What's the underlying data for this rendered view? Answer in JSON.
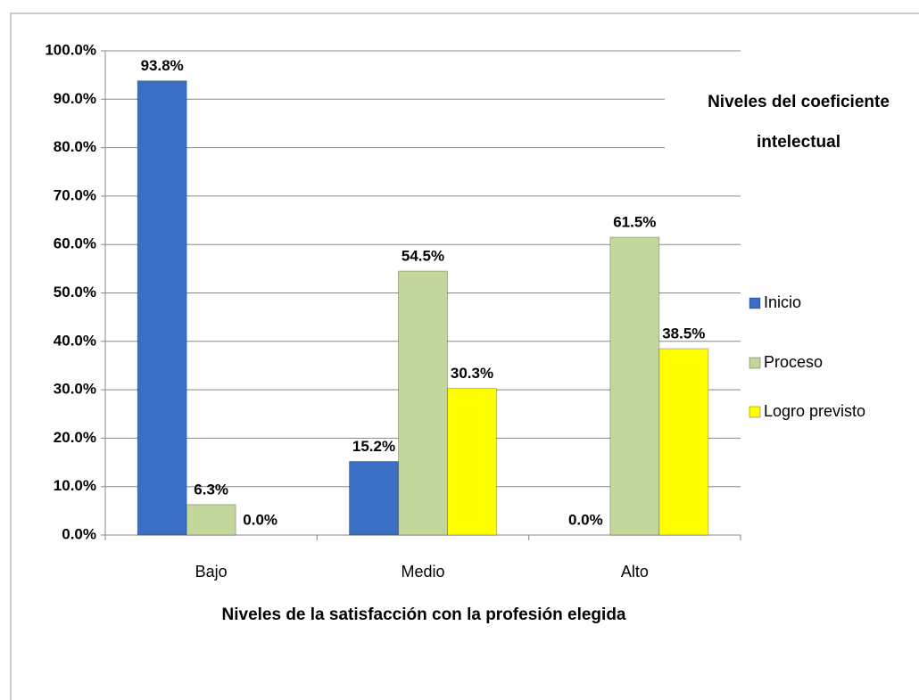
{
  "chart_data": {
    "type": "bar",
    "xlabel": "Niveles de la satisfacción con la profesión elegida",
    "legend_title": "Niveles del coeficiente intelectual",
    "legend": "right",
    "categories": [
      "Bajo",
      "Medio",
      "Alto"
    ],
    "series": [
      {
        "name": "Inicio",
        "color": "#3a6fc4",
        "values": [
          93.8,
          15.2,
          0.0
        ],
        "value_labels": [
          "93.8%",
          "15.2%",
          "0.0%"
        ]
      },
      {
        "name": "Proceso",
        "color": "#c3d69b",
        "values": [
          6.3,
          54.5,
          61.5
        ],
        "value_labels": [
          "6.3%",
          "54.5%",
          "61.5%"
        ]
      },
      {
        "name": "Logro previsto",
        "color": "#ffff00",
        "values": [
          0.0,
          30.3,
          38.5
        ],
        "value_labels": [
          "0.0%",
          "30.3%",
          "38.5%"
        ]
      }
    ],
    "ylim": [
      0,
      100
    ],
    "yticks": [
      {
        "value": 0,
        "label": "0.0%"
      },
      {
        "value": 10,
        "label": "10.0%"
      },
      {
        "value": 20,
        "label": "20.0%"
      },
      {
        "value": 30,
        "label": "30.0%"
      },
      {
        "value": 40,
        "label": "40.0%"
      },
      {
        "value": 50,
        "label": "50.0%"
      },
      {
        "value": 60,
        "label": "60.0%"
      },
      {
        "value": 70,
        "label": "70.0%"
      },
      {
        "value": 80,
        "label": "80.0%"
      },
      {
        "value": 90,
        "label": "90.0%"
      },
      {
        "value": 100,
        "label": "100.0%"
      }
    ],
    "grid": true
  }
}
